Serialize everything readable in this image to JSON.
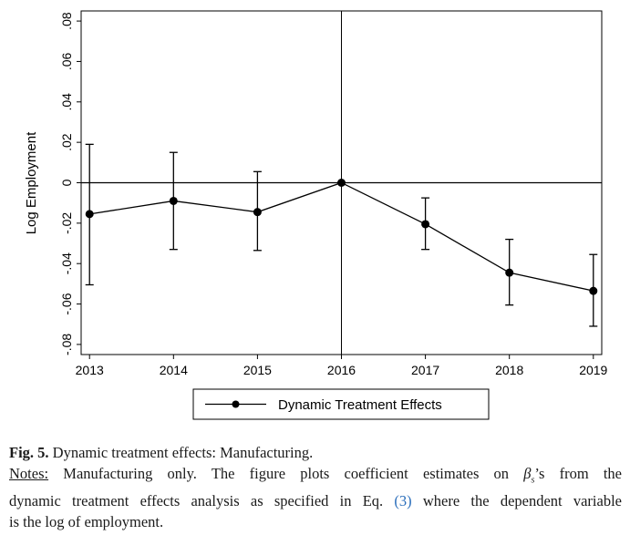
{
  "chart_data": {
    "type": "line",
    "ylabel": "Log Employment",
    "xlabel": "",
    "x": [
      2013,
      2014,
      2015,
      2016,
      2017,
      2018,
      2019
    ],
    "x_tick_labels": [
      "2013",
      "2014",
      "2015",
      "2016",
      "2017",
      "2018",
      "2019"
    ],
    "y_tick_labels": [
      "-.08",
      "-.06",
      "-.04",
      "-.02",
      "0",
      ".02",
      ".04",
      ".06",
      ".08"
    ],
    "y_ticks": [
      -0.08,
      -0.06,
      -0.04,
      -0.02,
      0,
      0.02,
      0.04,
      0.06,
      0.08
    ],
    "ylim": [
      -0.085,
      0.085
    ],
    "xlim": [
      2012.9,
      2019.1
    ],
    "reference_lines": {
      "horizontal_y": 0,
      "vertical_x": 2016
    },
    "series": [
      {
        "name": "Dynamic Treatment Effects",
        "values": [
          -0.0155,
          -0.009,
          -0.0145,
          0,
          -0.0205,
          -0.0445,
          -0.0535
        ],
        "ci_low": [
          -0.0505,
          -0.033,
          -0.0335,
          0,
          -0.033,
          -0.0605,
          -0.071
        ],
        "ci_high": [
          0.019,
          0.015,
          0.0055,
          0,
          -0.0075,
          -0.028,
          -0.0355
        ]
      }
    ],
    "legend": {
      "position": "bottom",
      "entries": [
        "Dynamic Treatment Effects"
      ]
    },
    "grid": false,
    "colors": {
      "line": "#000000",
      "marker": "#000000"
    }
  },
  "caption": {
    "fig_label": "Fig. 5.",
    "fig_title": "Dynamic treatment effects: Manufacturing.",
    "notes_label": "Notes:",
    "notes_line1": "Manufacturing only. The figure plots coefficient estimates on",
    "beta_symbol": "β",
    "beta_subscript": "s",
    "notes_line1_tail": "’s from the",
    "notes_line2_pre": "dynamic treatment effects analysis as specified in Eq.",
    "eq_ref": "(3)",
    "notes_line2_post": "where the dependent variable",
    "notes_line3": "is the log of employment."
  }
}
